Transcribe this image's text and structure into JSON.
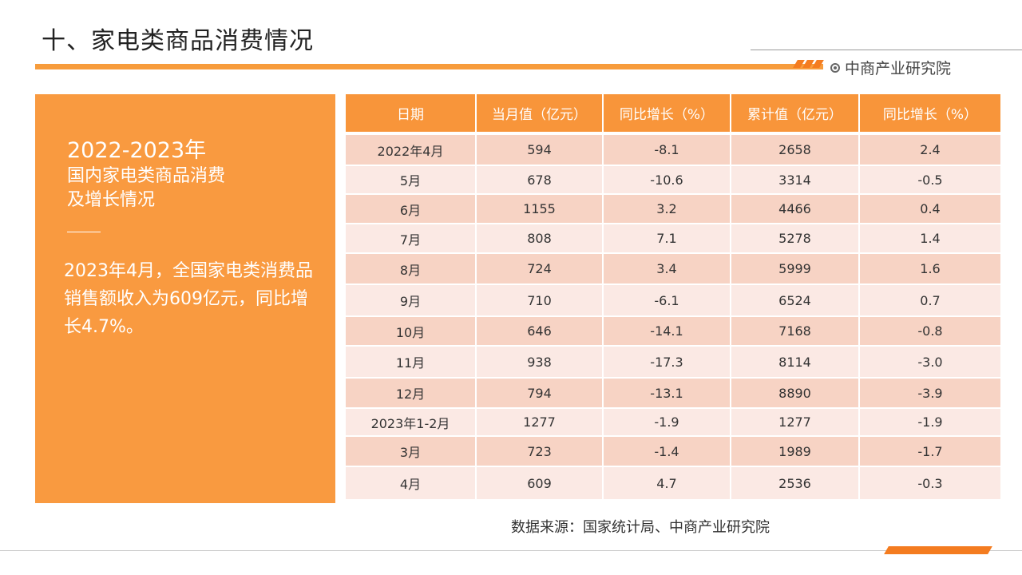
{
  "header": {
    "title": "十、家电类商品消费情况",
    "brand": "中商产业研究院"
  },
  "side": {
    "year": "2022-2023年",
    "subtitle_line1": "国内家电类商品消费",
    "subtitle_line2": "及增长情况",
    "body": "2023年4月，全国家电类消费品销售额收入为609亿元，同比增长4.7%。"
  },
  "table": {
    "columns": [
      "日期",
      "当月值（亿元）",
      "同比增长（%）",
      "累计值（亿元）",
      "同比增长（%）"
    ],
    "rows": [
      [
        "2022年4月",
        "594",
        "-8.1",
        "2658",
        "2.4"
      ],
      [
        "5月",
        "678",
        "-10.6",
        "3314",
        "-0.5"
      ],
      [
        "6月",
        "1155",
        "3.2",
        "4466",
        "0.4"
      ],
      [
        "7月",
        "808",
        "7.1",
        "5278",
        "1.4"
      ],
      [
        "8月",
        "724",
        "3.4",
        "5999",
        "1.6"
      ],
      [
        "9月",
        "710",
        "-6.1",
        "6524",
        "0.7"
      ],
      [
        "10月",
        "646",
        "-14.1",
        "7168",
        "-0.8"
      ],
      [
        "11月",
        "938",
        "-17.3",
        "8114",
        "-3.0"
      ],
      [
        "12月",
        "794",
        "-13.1",
        "8890",
        "-3.9"
      ],
      [
        "2023年1-2月",
        "1277",
        "-1.9",
        "1277",
        "-1.9"
      ],
      [
        "3月",
        "723",
        "-1.4",
        "1989",
        "-1.7"
      ],
      [
        "4月",
        "609",
        "4.7",
        "2536",
        "-0.3"
      ]
    ]
  },
  "source": "数据来源：国家统计局、中商产业研究院",
  "colors": {
    "accent": "#f99a40",
    "row_dark": "#f7d3c4",
    "row_light": "#fbe9e4"
  }
}
